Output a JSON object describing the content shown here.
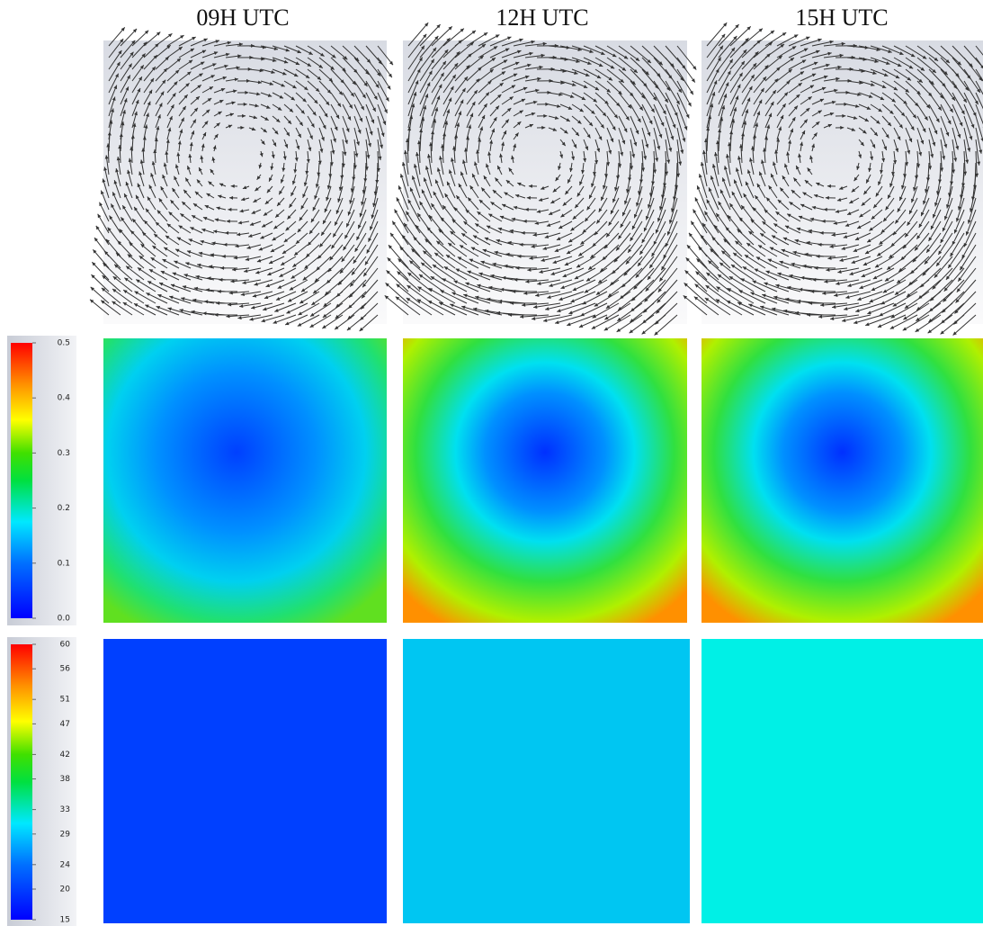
{
  "columns": [
    "09H UTC",
    "12H UTC",
    "15H UTC"
  ],
  "colorbars": [
    {
      "ticks": [
        {
          "value": 0,
          "label": "0.0"
        },
        0.1,
        0.2,
        0.3,
        0.4,
        0.5
      ]
    },
    {
      "ticks": [
        15,
        20,
        24,
        29,
        33,
        38,
        42,
        47,
        51,
        56,
        60
      ]
    }
  ]
}
